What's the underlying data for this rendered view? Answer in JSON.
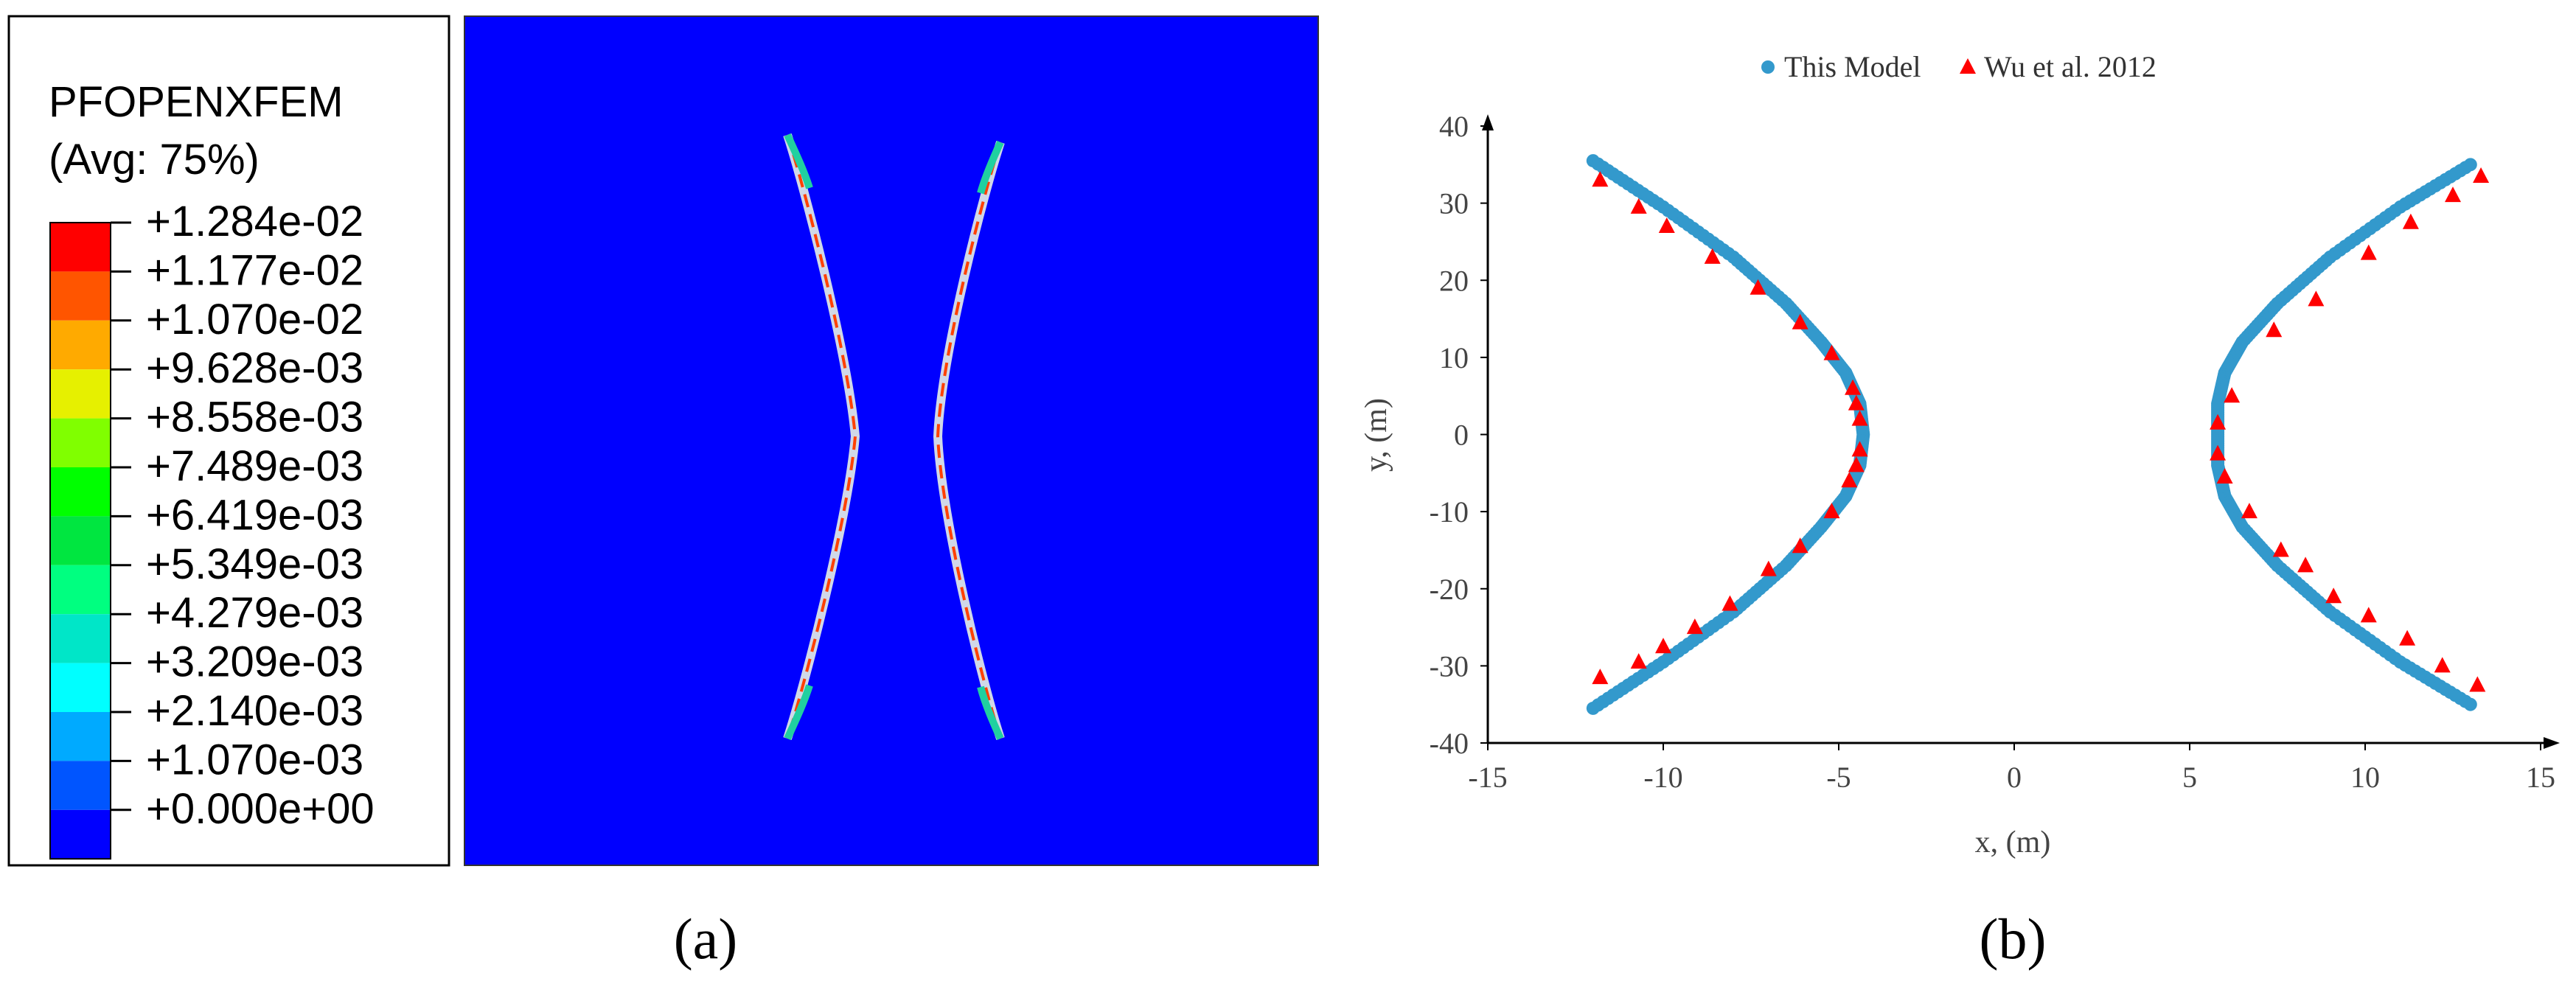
{
  "panel_a": {
    "caption": "(a)",
    "legend": {
      "title_line1": "PFOPENXFEM",
      "title_line2": "(Avg: 75%)",
      "levels": [
        {
          "label": "+1.284e-02",
          "color": "#ff0000"
        },
        {
          "label": "+1.177e-02",
          "color": "#ff5500"
        },
        {
          "label": "+1.070e-02",
          "color": "#ffaa00"
        },
        {
          "label": "+9.628e-03",
          "color": "#e6f000"
        },
        {
          "label": "+8.558e-03",
          "color": "#80ff00"
        },
        {
          "label": "+7.489e-03",
          "color": "#00ff00"
        },
        {
          "label": "+6.419e-03",
          "color": "#00e640"
        },
        {
          "label": "+5.349e-03",
          "color": "#00ff80"
        },
        {
          "label": "+4.279e-03",
          "color": "#00e6c8"
        },
        {
          "label": "+3.209e-03",
          "color": "#00ffff"
        },
        {
          "label": "+2.140e-03",
          "color": "#00aaff"
        },
        {
          "label": "+1.070e-03",
          "color": "#0055ff"
        },
        {
          "label": "+0.000e+00",
          "color": "#0000ff"
        }
      ]
    },
    "field_background": "#0000ff"
  },
  "panel_b": {
    "caption": "(b)"
  },
  "chart_data": {
    "type": "scatter",
    "xlabel": "x, (m)",
    "ylabel": "y, (m)",
    "xlim": [
      -15,
      15
    ],
    "ylim": [
      -40,
      40
    ],
    "xticks": [
      "-15",
      "-10",
      "-5",
      "0",
      "5",
      "10",
      "15"
    ],
    "yticks": [
      "40",
      "30",
      "20",
      "10",
      "0",
      "-10",
      "-20",
      "-30",
      "-40"
    ],
    "legend_position": "top-center",
    "series": [
      {
        "name": "This Model",
        "color": "#3399cc",
        "marker": "circle",
        "branches": [
          {
            "x": [
              -12,
              -10,
              -8,
              -6.5,
              -5.5,
              -4.8,
              -4.4,
              -4.3,
              -4.4,
              -4.8,
              -5.5,
              -6.5,
              -8,
              -10,
              -12
            ],
            "y": [
              35.5,
              29.5,
              23,
              17,
              12,
              8,
              4,
              0,
              -4,
              -8,
              -12,
              -17,
              -23,
              -29.5,
              -35.5
            ]
          },
          {
            "x": [
              13,
              11,
              9,
              7.5,
              6.5,
              6,
              5.8,
              5.8,
              5.8,
              6,
              6.5,
              7.5,
              9,
              11,
              13
            ],
            "y": [
              35,
              29.5,
              23,
              17,
              12,
              8,
              4,
              0,
              -4,
              -8,
              -12,
              -17,
              -23,
              -29.5,
              -35
            ]
          }
        ]
      },
      {
        "name": "Wu et al. 2012",
        "color": "#ff0000",
        "marker": "triangle",
        "branches": [
          {
            "x": [
              -11.8,
              -10.7,
              -9.9,
              -8.6,
              -7.3,
              -6.1,
              -5.2,
              -4.6,
              -4.5,
              -4.4,
              -4.4,
              -4.5,
              -4.7,
              -5.2,
              -6.1,
              -7.0,
              -8.1,
              -9.1,
              -10.0,
              -10.7,
              -11.8
            ],
            "y": [
              33,
              29.5,
              27,
              23,
              19,
              14.5,
              10.5,
              6,
              4,
              2,
              -2,
              -4,
              -6,
              -10,
              -14.5,
              -17.5,
              -22,
              -25,
              -27.5,
              -29.5,
              -31.5
            ]
          },
          {
            "x": [
              13.3,
              12.5,
              11.3,
              10.1,
              8.6,
              7.4,
              6.2,
              5.8,
              5.8,
              6.0,
              6.7,
              7.6,
              8.3,
              9.1,
              10.1,
              11.2,
              12.2,
              13.2
            ],
            "y": [
              33.5,
              31,
              27.5,
              23.5,
              17.5,
              13.5,
              5,
              1.5,
              -2.5,
              -5.5,
              -10,
              -15,
              -17,
              -21,
              -23.5,
              -26.5,
              -30,
              -32.5
            ]
          }
        ]
      }
    ]
  }
}
